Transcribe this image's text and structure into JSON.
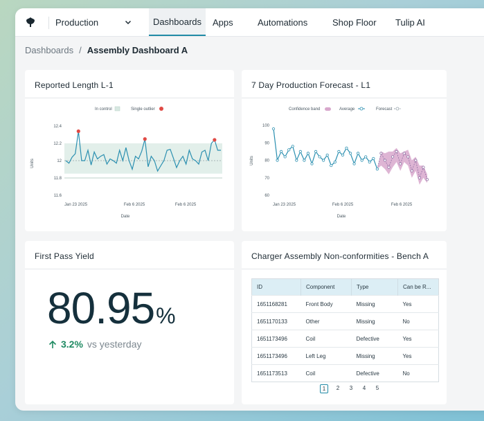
{
  "topbar": {
    "workspace": "Production",
    "nav": [
      "Dashboards",
      "Apps",
      "Automations",
      "Shop Floor",
      "Tulip AI"
    ],
    "active_nav": "Dashboards"
  },
  "breadcrumb": {
    "root": "Dashboards",
    "separator": "/",
    "current": "Assembly Dashboard A"
  },
  "cards": {
    "reported_length": {
      "title": "Reported Length L-1",
      "legend": [
        "In control",
        "Single outlier"
      ],
      "ylabel": "Units",
      "xlabel": "Date",
      "y_ticks": [
        "12.4",
        "12.2",
        "12",
        "11.8",
        "11.6"
      ],
      "x_ticks": [
        "Jan 23 2025",
        "Feb 6 2025",
        "Feb 6 2025"
      ]
    },
    "forecast": {
      "title": "7 Day Production Forecast - L1",
      "legend": [
        "Confidence band",
        "Average",
        "Forecast"
      ],
      "ylabel": "Units",
      "xlabel": "Date",
      "y_ticks": [
        "100",
        "90",
        "80",
        "70",
        "60"
      ],
      "x_ticks": [
        "Jan 23 2025",
        "Feb 6 2025",
        "Feb 6 2025"
      ]
    },
    "first_pass_yield": {
      "title": "First Pass Yield",
      "value": "80.95",
      "unit": "%",
      "change": "3.2%",
      "comparison": "vs yesterday"
    },
    "nonconformities": {
      "title": "Charger Assembly Non-conformities - Bench A",
      "columns": [
        "ID",
        "Component",
        "Type",
        "Can be R..."
      ],
      "rows": [
        [
          "1651168281",
          "Front Body",
          "Missing",
          "Yes"
        ],
        [
          "1651170133",
          "Other",
          "Missing",
          "No"
        ],
        [
          "1651173496",
          "Coil",
          "Defective",
          "Yes"
        ],
        [
          "1651173496",
          "Left Leg",
          "Missing",
          "Yes"
        ],
        [
          "1651173513",
          "Coil",
          "Defective",
          "No"
        ]
      ],
      "pages": [
        "1",
        "2",
        "3",
        "4",
        "5"
      ],
      "current_page": "1"
    }
  },
  "chart_data": [
    {
      "type": "line",
      "title": "Reported Length L-1",
      "xlabel": "Date",
      "ylabel": "Units",
      "ylim": [
        11.6,
        12.4
      ],
      "control_band": [
        11.85,
        12.2
      ],
      "center_line": 12.0,
      "lower_line": 11.8,
      "series": [
        {
          "name": "In control",
          "values": [
            12.0,
            11.97,
            12.04,
            12.08,
            12.34,
            12.0,
            12.0,
            12.12,
            11.95,
            12.1,
            12.02,
            12.05,
            12.07,
            11.96,
            12.02,
            12.0,
            11.97,
            12.12,
            12.0,
            12.15,
            12.0,
            11.9,
            12.05,
            12.02,
            12.11,
            12.25,
            11.93,
            12.05,
            12.0,
            11.88,
            11.94,
            12.0,
            12.12,
            12.13,
            12.03,
            11.92,
            12.0,
            12.05,
            11.96,
            12.12,
            12.02,
            12.0,
            11.96,
            12.1,
            12.12,
            12.0,
            12.2,
            12.24,
            12.12,
            12.12
          ]
        }
      ],
      "outliers": [
        {
          "index": 4,
          "value": 12.34
        },
        {
          "index": 25,
          "value": 12.25
        },
        {
          "index": 47,
          "value": 12.24
        }
      ],
      "x_ticks": [
        "Jan 23 2025",
        "Feb 6 2025",
        "Feb 6 2025"
      ]
    },
    {
      "type": "line",
      "title": "7 Day Production Forecast - L1",
      "xlabel": "Date",
      "ylabel": "Units",
      "ylim": [
        60,
        100
      ],
      "series": [
        {
          "name": "Average",
          "values": [
            98,
            80,
            85,
            82,
            86,
            88,
            80,
            85,
            80,
            84,
            78,
            85,
            82,
            80,
            83,
            77,
            79,
            85,
            83,
            87,
            84,
            78,
            84,
            80,
            82,
            79,
            81,
            75
          ]
        },
        {
          "name": "Forecast",
          "values": [
            75,
            84,
            80,
            76,
            82,
            85,
            78,
            84,
            82,
            74,
            80,
            70,
            76,
            69
          ]
        }
      ],
      "confidence_band": {
        "upper": [
          75,
          85,
          84,
          85,
          85,
          87,
          84,
          85,
          86,
          80,
          82,
          77,
          77,
          72
        ],
        "lower": [
          75,
          77,
          75,
          72,
          76,
          79,
          74,
          79,
          77,
          70,
          74,
          66,
          70,
          67
        ]
      },
      "x_ticks": [
        "Jan 23 2025",
        "Feb 6 2025",
        "Feb 6 2025"
      ]
    }
  ],
  "colors": {
    "accent": "#1f8aa6",
    "line": "#2a8fb0",
    "outlier": "#e04a45",
    "band": "#e2efea",
    "forecast_band": "#d8a8cc",
    "delta_up": "#1f8a62"
  }
}
